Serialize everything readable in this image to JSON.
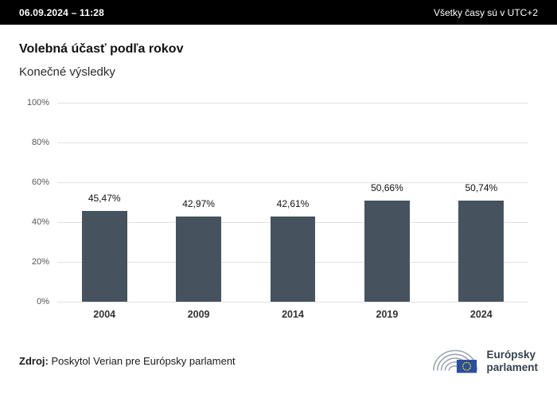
{
  "header": {
    "datetime": "06.09.2024 – 11:28",
    "timezone_note": "Všetky časy sú v UTC+2"
  },
  "title": "Volebná účasť podľa rokov",
  "subtitle": "Konečné výsledky",
  "chart_data": {
    "type": "bar",
    "title": "Volebná účasť podľa rokov",
    "subtitle": "Konečné výsledky",
    "categories": [
      "2004",
      "2009",
      "2014",
      "2019",
      "2024"
    ],
    "values": [
      45.47,
      42.97,
      42.61,
      50.66,
      50.74
    ],
    "value_labels": [
      "45,47%",
      "42,97%",
      "42,61%",
      "50,66%",
      "50,74%"
    ],
    "ylim": [
      0,
      100
    ],
    "yticks": [
      "100%",
      "80%",
      "60%",
      "40%",
      "20%",
      "0%"
    ],
    "bar_color": "#46535e",
    "grid": true,
    "legend": "none",
    "xlabel": "",
    "ylabel": ""
  },
  "footer": {
    "source_label": "Zdroj:",
    "source_text": " Poskytol Verian pre Európsky parlament",
    "logo": {
      "line1": "Európsky",
      "line2": "parlament"
    }
  },
  "colors": {
    "topbar_bg": "#000000",
    "bar": "#46535e",
    "gridline": "#e2e2e2",
    "eu_flag_blue": "#2a4f9e",
    "eu_star_yellow": "#ffcc00",
    "logo_arc_gray": "#9aa4ad"
  }
}
